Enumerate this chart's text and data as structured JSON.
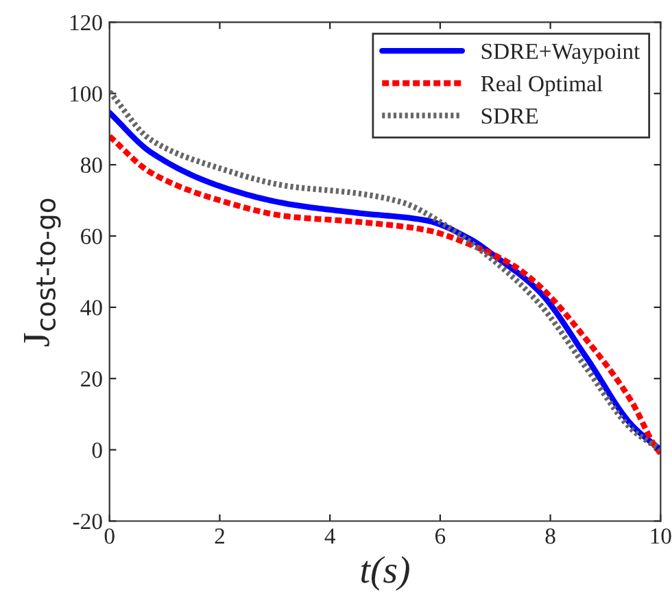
{
  "chart_data": {
    "type": "line",
    "xlabel": "t(s)",
    "ylabel": "J$_{cost-to-go}$",
    "xlim": [
      0,
      10
    ],
    "ylim": [
      -20,
      120
    ],
    "xticks": [
      0,
      2,
      4,
      6,
      8,
      10
    ],
    "yticks": [
      -20,
      0,
      20,
      40,
      60,
      80,
      100,
      120
    ],
    "grid": false,
    "legend": "top right",
    "series": [
      {
        "name": "SDRE+Waypoint",
        "color": "#0000ff",
        "line_style": "solid",
        "x": [
          0,
          0.75,
          2,
          3.24,
          4.49,
          5.74,
          6.56,
          6.98,
          7.8,
          8.65,
          9.48,
          10
        ],
        "values": [
          94.6,
          83.5,
          74,
          69,
          66.5,
          64.4,
          59,
          54.5,
          44.4,
          26,
          6.9,
          0
        ]
      },
      {
        "name": "Real Optimal",
        "color": "#ff0000",
        "line_style": "dashed",
        "x": [
          0,
          0.75,
          2,
          3.24,
          4.49,
          5.74,
          6.56,
          7.3,
          7.8,
          8.65,
          9.48,
          9.9,
          10
        ],
        "values": [
          88,
          77.8,
          70,
          65.5,
          64,
          61.7,
          57.5,
          52,
          46,
          31,
          13.4,
          1,
          -1
        ]
      },
      {
        "name": "SDRE",
        "color": "#666666",
        "line_style": "dotted",
        "x": [
          0,
          0.75,
          2,
          3.24,
          4.49,
          5.3,
          6.1,
          6.98,
          7.8,
          8.65,
          9.48,
          10
        ],
        "values": [
          100.5,
          87,
          79,
          74,
          72,
          69.5,
          63,
          53,
          41,
          23,
          5.7,
          0
        ]
      }
    ]
  }
}
